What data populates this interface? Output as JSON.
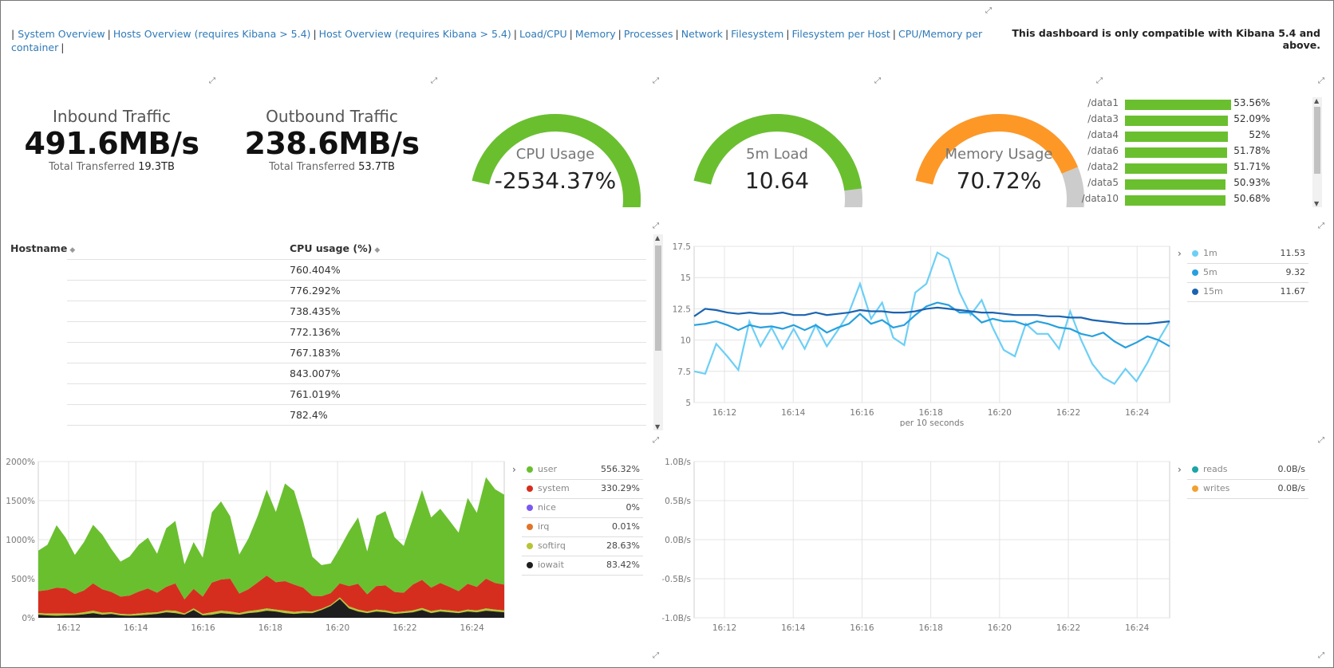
{
  "nav": {
    "prefix": "|",
    "links": [
      "System Overview",
      "Hosts Overview (requires Kibana > 5.4)",
      "Host Overview (requires Kibana > 5.4)",
      "Load/CPU",
      "Memory",
      "Processes",
      "Network",
      "Filesystem",
      "Filesystem per Host",
      "CPU/Memory per container"
    ],
    "separator": "|",
    "compat_notice": "This dashboard is only compatible with Kibana 5.4 and above."
  },
  "inbound": {
    "label": "Inbound Traffic",
    "value": "491.6MB/s",
    "sub_label": "Total Transferred",
    "sub_value": "19.3TB"
  },
  "outbound": {
    "label": "Outbound Traffic",
    "value": "238.6MB/s",
    "sub_label": "Total Transferred",
    "sub_value": "53.7TB"
  },
  "gauges": [
    {
      "label": "CPU Usage",
      "value": "-2534.37%",
      "fraction": 1.0,
      "color": "#6abf2f"
    },
    {
      "label": "5m Load",
      "value": "10.64",
      "fraction": 0.78,
      "color": "#6abf2f"
    },
    {
      "label": "Memory Usage",
      "value": "70.72%",
      "fraction": 0.7072,
      "color": "#fd9827"
    }
  ],
  "disks": [
    {
      "name": "/data1",
      "pct": "53.56%",
      "fraction": 0.5356
    },
    {
      "name": "/data3",
      "pct": "52.09%",
      "fraction": 0.5209
    },
    {
      "name": "/data4",
      "pct": "52%",
      "fraction": 0.52
    },
    {
      "name": "/data6",
      "pct": "51.78%",
      "fraction": 0.5178
    },
    {
      "name": "/data2",
      "pct": "51.71%",
      "fraction": 0.5171
    },
    {
      "name": "/data5",
      "pct": "50.93%",
      "fraction": 0.5093
    },
    {
      "name": "/data10",
      "pct": "50.68%",
      "fraction": 0.5068
    }
  ],
  "table": {
    "headers": [
      "Hostname",
      "CPU usage (%)"
    ],
    "sort_glyph": "◆",
    "rows": [
      "760.404%",
      "776.292%",
      "738.435%",
      "772.136%",
      "767.183%",
      "843.007%",
      "761.019%",
      "782.4%"
    ]
  },
  "colors": {
    "green": "#6abf2f",
    "orange": "#fd9827",
    "red": "#d52e1f",
    "link": "#2f7ab8"
  },
  "chart_data": [
    {
      "type": "line",
      "xlabel": "per 10 seconds",
      "x_ticks": [
        "16:12",
        "16:14",
        "16:16",
        "16:18",
        "16:20",
        "16:22",
        "16:24"
      ],
      "y_ticks": [
        "17.5",
        "15",
        "12.5",
        "10",
        "7.5",
        "5"
      ],
      "ylim": [
        5,
        17.5
      ],
      "legend_position": "right",
      "series": [
        {
          "name": "1m",
          "color": "#6dcff6",
          "summary": "11.53",
          "values": [
            7.5,
            7.3,
            9.7,
            8.7,
            7.6,
            11.5,
            9.5,
            11.0,
            9.3,
            10.9,
            9.3,
            11.2,
            9.5,
            10.8,
            12.2,
            14.5,
            11.7,
            13.0,
            10.2,
            9.6,
            13.8,
            14.5,
            17,
            16.5,
            13.8,
            12.0,
            13.2,
            11.0,
            9.2,
            8.7,
            11.3,
            10.5,
            10.5,
            9.3,
            12.3,
            10.0,
            8.1,
            7.0,
            6.5,
            7.7,
            6.7,
            8.2,
            10.0,
            11.5
          ]
        },
        {
          "name": "5m",
          "color": "#26a0df",
          "summary": "9.32",
          "values": [
            11.2,
            11.3,
            11.5,
            11.2,
            10.8,
            11.2,
            11.0,
            11.1,
            10.9,
            11.2,
            10.8,
            11.2,
            10.6,
            11.0,
            11.3,
            12.1,
            11.3,
            11.6,
            11.0,
            11.2,
            12.0,
            12.7,
            13.0,
            12.8,
            12.2,
            12.2,
            11.4,
            11.7,
            11.5,
            11.5,
            11.2,
            11.5,
            11.3,
            11.0,
            10.9,
            10.5,
            10.3,
            10.6,
            9.9,
            9.4,
            9.8,
            10.3,
            10.0,
            9.5
          ]
        },
        {
          "name": "15m",
          "color": "#1b63b0",
          "summary": "11.67",
          "values": [
            11.9,
            12.5,
            12.4,
            12.2,
            12.1,
            12.2,
            12.1,
            12.1,
            12.2,
            12.0,
            12.0,
            12.2,
            12.0,
            12.1,
            12.2,
            12.4,
            12.3,
            12.3,
            12.2,
            12.2,
            12.3,
            12.5,
            12.6,
            12.5,
            12.4,
            12.3,
            12.2,
            12.2,
            12.1,
            12.0,
            12.0,
            12.0,
            11.9,
            11.9,
            11.8,
            11.8,
            11.6,
            11.5,
            11.4,
            11.3,
            11.3,
            11.3,
            11.4,
            11.5
          ]
        }
      ]
    },
    {
      "type": "area",
      "x_ticks": [
        "16:12",
        "16:14",
        "16:16",
        "16:18",
        "16:20",
        "16:22",
        "16:24"
      ],
      "y_ticks": [
        "2000%",
        "1500%",
        "1000%",
        "500%",
        "0%"
      ],
      "ylim": [
        0,
        2000
      ],
      "legend_position": "right",
      "series": [
        {
          "name": "user",
          "color": "#6abf2f",
          "summary": "556.32%",
          "values": [
            520,
            580,
            800,
            650,
            500,
            620,
            750,
            700,
            550,
            450,
            500,
            600,
            650,
            500,
            750,
            800,
            450,
            600,
            500,
            900,
            1000,
            800,
            500,
            650,
            850,
            1100,
            900,
            1250,
            1200,
            850,
            500,
            400,
            380,
            450,
            700,
            850,
            550,
            900,
            950,
            700,
            600,
            850,
            1150,
            900,
            950,
            850,
            750,
            1100,
            950,
            1300,
            1200,
            1150
          ]
        },
        {
          "name": "system",
          "color": "#d52e1f",
          "summary": "330.29%",
          "values": [
            280,
            300,
            330,
            320,
            250,
            280,
            350,
            300,
            260,
            220,
            240,
            280,
            310,
            250,
            300,
            350,
            180,
            250,
            220,
            380,
            400,
            420,
            250,
            280,
            350,
            420,
            350,
            380,
            350,
            300,
            200,
            160,
            150,
            180,
            260,
            330,
            220,
            300,
            320,
            260,
            240,
            330,
            360,
            300,
            340,
            300,
            260,
            330,
            300,
            380,
            340,
            330
          ]
        },
        {
          "name": "nice",
          "color": "#7b57f2",
          "summary": "0%",
          "values": []
        },
        {
          "name": "irq",
          "color": "#e07429",
          "summary": "0.01%",
          "values": []
        },
        {
          "name": "softirq",
          "color": "#b7c435",
          "summary": "28.63%",
          "values": [
            20,
            25,
            30,
            25,
            20,
            25,
            30,
            25,
            20,
            20,
            20,
            25,
            25,
            20,
            25,
            30,
            15,
            20,
            20,
            30,
            30,
            30,
            20,
            25,
            30,
            30,
            25,
            30,
            25,
            25,
            20,
            15,
            15,
            20,
            25,
            25,
            20,
            25,
            25,
            20,
            20,
            25,
            25,
            25,
            25,
            25,
            20,
            25,
            25,
            30,
            25,
            25
          ]
        },
        {
          "name": "iowait",
          "color": "#1e1e1e",
          "summary": "83.42%",
          "values": [
            40,
            30,
            25,
            30,
            35,
            45,
            60,
            40,
            50,
            30,
            25,
            30,
            40,
            50,
            70,
            60,
            40,
            100,
            30,
            40,
            60,
            50,
            40,
            60,
            70,
            90,
            80,
            60,
            50,
            60,
            60,
            100,
            150,
            240,
            120,
            80,
            60,
            80,
            70,
            50,
            60,
            70,
            100,
            60,
            80,
            70,
            60,
            80,
            70,
            90,
            80,
            70
          ]
        }
      ]
    },
    {
      "type": "line",
      "x_ticks": [
        "16:12",
        "16:14",
        "16:16",
        "16:18",
        "16:20",
        "16:22",
        "16:24"
      ],
      "y_ticks": [
        "1.0B/s",
        "0.5B/s",
        "0.0B/s",
        "-0.5B/s",
        "-1.0B/s"
      ],
      "ylim": [
        -1,
        1
      ],
      "legend_position": "right",
      "series": [
        {
          "name": "reads",
          "color": "#1aa5a6",
          "summary": "0.0B/s",
          "values": []
        },
        {
          "name": "writes",
          "color": "#f4a030",
          "summary": "0.0B/s",
          "values": []
        }
      ]
    }
  ]
}
